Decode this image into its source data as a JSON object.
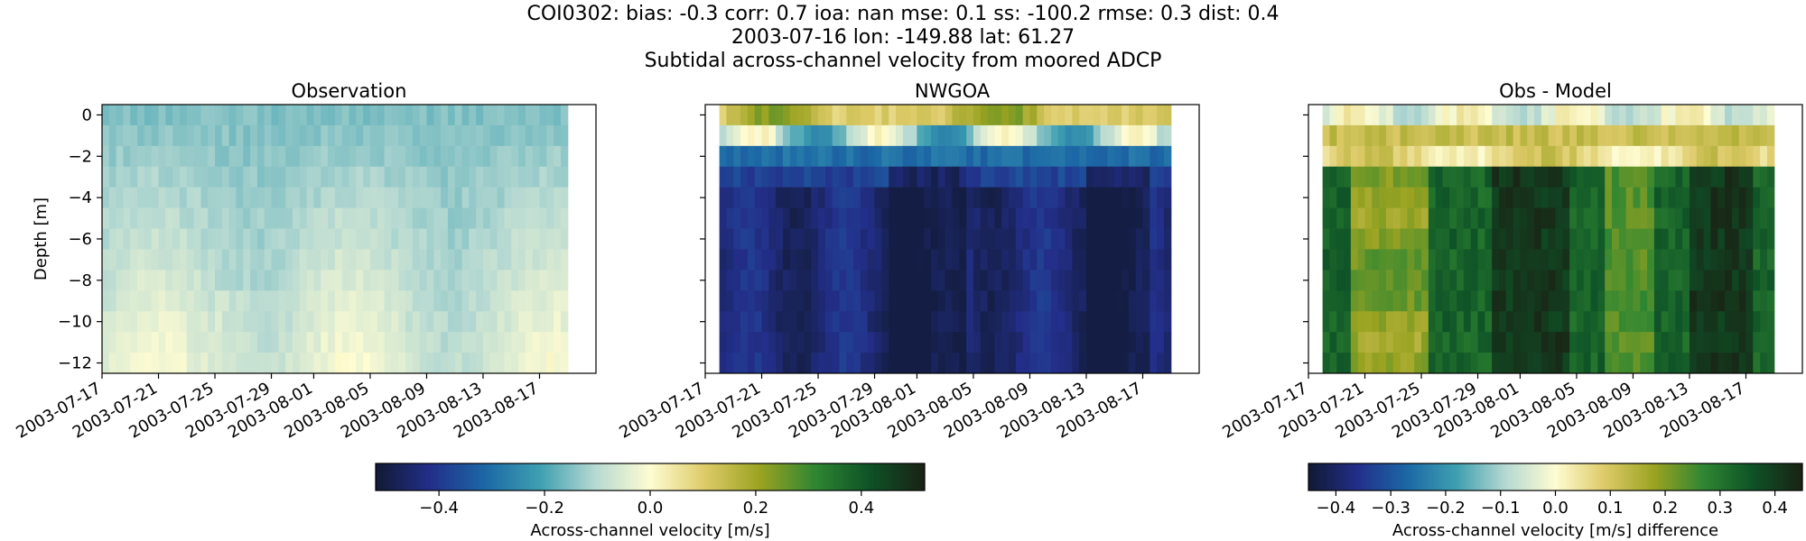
{
  "figure": {
    "title_lines": [
      "COI0302: bias: -0.3  corr: 0.7  ioa: nan  mse: 0.1  ss: -100.2  rmse: 0.3  dist: 0.4",
      "2003-07-16 lon: -149.88 lat: 61.27",
      "Subtidal across-channel velocity from moored ADCP"
    ]
  },
  "chart_data": [
    {
      "type": "heatmap",
      "title": "Observation",
      "ylabel": "Depth [m]",
      "xlim": [
        "2003-07-17",
        "2003-08-21"
      ],
      "ylim": [
        -12.5,
        0.5
      ],
      "x_ticks": [
        "2003-07-17",
        "2003-07-21",
        "2003-07-25",
        "2003-07-29",
        "2003-08-01",
        "2003-08-05",
        "2003-08-09",
        "2003-08-13",
        "2003-08-17"
      ],
      "y_ticks": [
        0,
        -2,
        -4,
        -6,
        -8,
        -10,
        -12
      ],
      "time_range": [
        "2003-07-17",
        "2003-08-19"
      ],
      "depth_levels": [
        0,
        -1,
        -2,
        -3,
        -4,
        -5,
        -6,
        -7,
        -8,
        -9,
        -10,
        -11,
        -12
      ],
      "value_range": [
        -0.2,
        0.02
      ],
      "colorbar": "velocity"
    },
    {
      "type": "heatmap",
      "title": "NWGOA",
      "ylabel": "",
      "xlim": [
        "2003-07-17",
        "2003-08-21"
      ],
      "ylim": [
        -12.5,
        0.5
      ],
      "x_ticks": [
        "2003-07-17",
        "2003-07-21",
        "2003-07-25",
        "2003-07-29",
        "2003-08-01",
        "2003-08-05",
        "2003-08-09",
        "2003-08-13",
        "2003-08-17"
      ],
      "y_ticks": [
        0,
        -2,
        -4,
        -6,
        -8,
        -10,
        -12
      ],
      "time_range": [
        "2003-07-18",
        "2003-08-19"
      ],
      "depth_levels": [
        0,
        -1,
        -2,
        -3,
        -4,
        -5,
        -6,
        -7,
        -8,
        -9,
        -10,
        -11,
        -12
      ],
      "value_range": [
        -0.5,
        0.25
      ],
      "colorbar": "velocity"
    },
    {
      "type": "heatmap",
      "title": "Obs - Model",
      "ylabel": "",
      "xlim": [
        "2003-07-17",
        "2003-08-21"
      ],
      "ylim": [
        -12.5,
        0.5
      ],
      "x_ticks": [
        "2003-07-17",
        "2003-07-21",
        "2003-07-25",
        "2003-07-29",
        "2003-08-01",
        "2003-08-05",
        "2003-08-09",
        "2003-08-13",
        "2003-08-17"
      ],
      "y_ticks": [
        0,
        -2,
        -4,
        -6,
        -8,
        -10,
        -12
      ],
      "time_range": [
        "2003-07-18",
        "2003-08-19"
      ],
      "depth_levels": [
        0,
        -1,
        -2,
        -3,
        -4,
        -5,
        -6,
        -7,
        -8,
        -9,
        -10,
        -11,
        -12
      ],
      "value_range": [
        -0.1,
        0.45
      ],
      "colorbar": "difference"
    }
  ],
  "colorbars": {
    "velocity": {
      "label": "Across-channel velocity [m/s]",
      "range": [
        -0.52,
        0.52
      ],
      "ticks": [
        -0.4,
        -0.2,
        0.0,
        0.2,
        0.4
      ],
      "tick_labels": [
        "−0.4",
        "−0.2",
        "0.0",
        "0.2",
        "0.4"
      ]
    },
    "difference": {
      "label": "Across-channel velocity [m/s] difference",
      "range": [
        -0.45,
        0.45
      ],
      "ticks": [
        -0.4,
        -0.3,
        -0.2,
        -0.1,
        0.0,
        0.1,
        0.2,
        0.3,
        0.4
      ],
      "tick_labels": [
        "−0.4",
        "−0.3",
        "−0.2",
        "−0.1",
        "0.0",
        "0.1",
        "0.2",
        "0.3",
        "0.4"
      ]
    }
  },
  "colormap": {
    "name": "delta",
    "stops": [
      "#111a33",
      "#232f8a",
      "#1c68a6",
      "#3fa0b1",
      "#b6d9d2",
      "#fefcd2",
      "#ddca68",
      "#9aa321",
      "#2f8632",
      "#0e5227",
      "#1a2214"
    ]
  }
}
